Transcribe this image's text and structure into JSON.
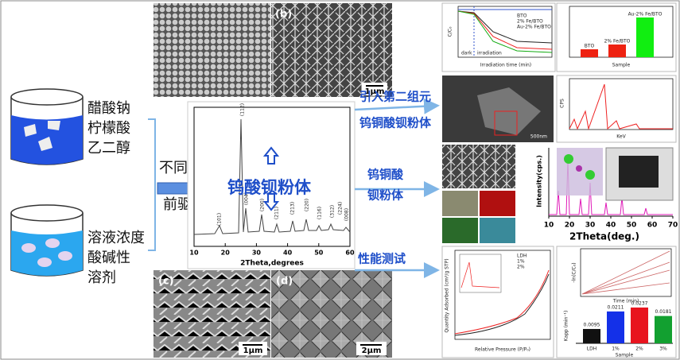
{
  "left": {
    "beaker1": [
      "醋酸钠",
      "柠檬酸",
      "乙二醇"
    ],
    "beaker2": [
      "溶液浓度",
      "酸碱性",
      "溶剂"
    ],
    "precursor": [
      "不同形貌",
      "前驱粉体"
    ]
  },
  "center": {
    "product": "钨酸钡粉体",
    "micrographs": {
      "b": "(b)",
      "c": "(c)",
      "d": "(d)",
      "scale_b": "1μm",
      "scale_c": "1μm",
      "scale_d": "2μm"
    },
    "xrd": {
      "xlabel": "2Theta,degrees",
      "xticks": [
        10,
        20,
        30,
        40,
        50,
        60
      ],
      "peaks": [
        "(112)",
        "(101)",
        "(004)",
        "(200)",
        "(211)",
        "(213)",
        "(220)",
        "(116)",
        "(312)",
        "(224)",
        "(008)"
      ]
    }
  },
  "arrows": {
    "top": [
      "引入第二组元",
      "钨铜酸钡粉体"
    ],
    "middle": [
      "钨铜酸",
      "钡粉体"
    ],
    "bottom": "性能测试"
  },
  "right": {
    "photocatalysis": {
      "xlabel": "Irradiation time (min)",
      "ylabel": "C/C₀",
      "dark": "dark",
      "irradiation": "irradiation",
      "legend": [
        "BTO",
        "2% Fe/BTO",
        "Au-2% Fe/BTO"
      ],
      "bar_xlabel": "Sample"
    },
    "eds": {
      "xlabel": "KeV",
      "ylabel": "CPS",
      "scale": "500nm"
    },
    "xrd": {
      "ylabel": "Intensity(cps.)",
      "xlabel": "2Theta(deg.)",
      "xticks": [
        10,
        20,
        30,
        40,
        50,
        60,
        70
      ]
    },
    "bet": {
      "xlabel": "Relative Pressure (P/P₀)",
      "ylabel": "Quantity Adsorbed (cm³/g STP)",
      "legend": [
        "LDH",
        "1%",
        "2%"
      ]
    },
    "kinetics": {
      "xlabel": "Time (min)",
      "ylabel": "-ln(C/C₀)",
      "bar_xlabel": "Sample",
      "bar_ylabel": "Kapp (min⁻¹)",
      "categories": [
        "LDH",
        "1%",
        "2%",
        "3%"
      ],
      "values": [
        0.0095,
        0.0211,
        0.0237,
        0.0181
      ]
    }
  }
}
